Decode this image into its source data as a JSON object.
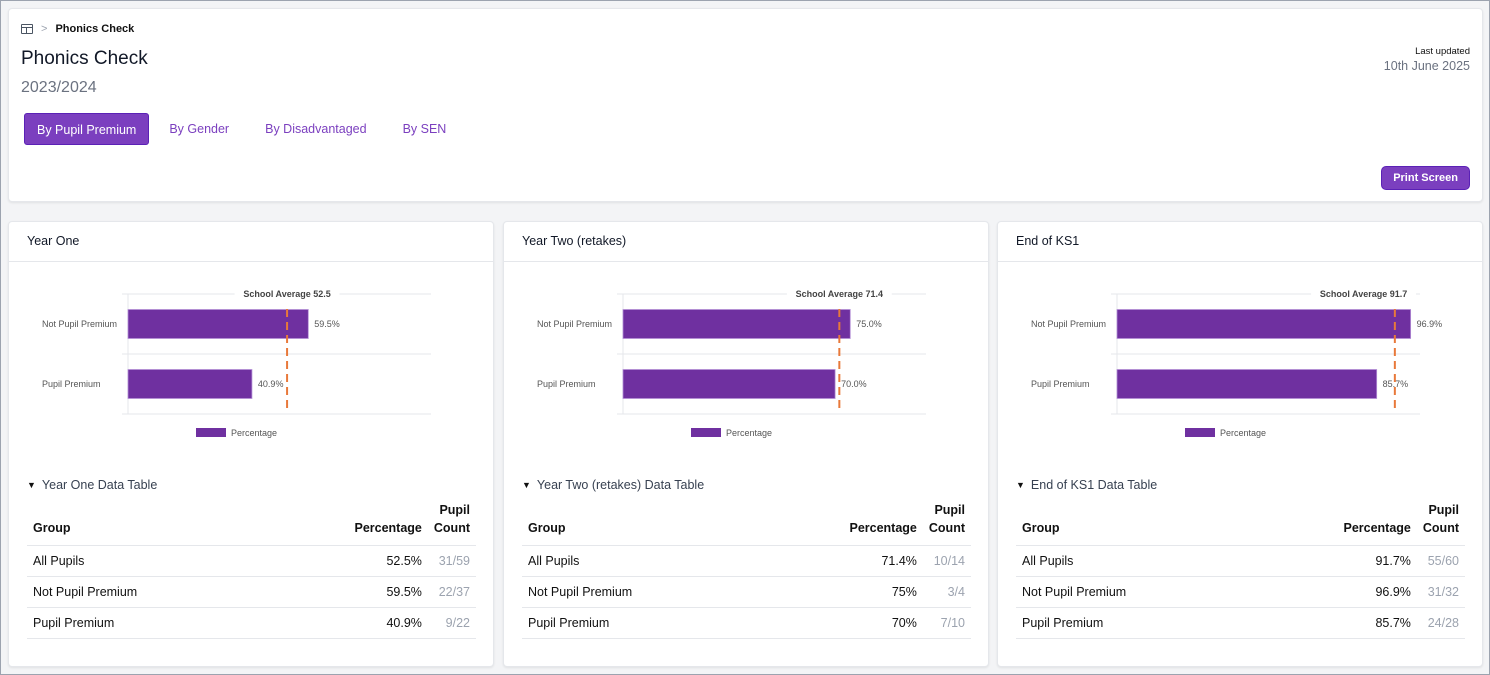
{
  "breadcrumb": {
    "icon": "table-icon",
    "separator": ">",
    "current": "Phonics Check"
  },
  "header": {
    "title": "Phonics Check",
    "subtitle": "2023/2024",
    "last_updated_label": "Last updated",
    "last_updated_date": "10th June 2025"
  },
  "tabs": [
    {
      "label": "By Pupil Premium",
      "active": true
    },
    {
      "label": "By Gender",
      "active": false
    },
    {
      "label": "By Disadvantaged",
      "active": false
    },
    {
      "label": "By SEN",
      "active": false
    }
  ],
  "print_button": "Print Screen",
  "colors": {
    "accent": "#7b3fbf",
    "bar": "#6f30a0",
    "average_line": "#e8793a"
  },
  "table_headers": {
    "group": "Group",
    "percentage": "Percentage",
    "count_line1": "Pupil",
    "count_line2": "Count"
  },
  "panels": [
    {
      "title": "Year One",
      "table_title": "Year One Data Table",
      "rows": [
        {
          "group": "All Pupils",
          "percentage": "52.5%",
          "count": "31/59"
        },
        {
          "group": "Not Pupil Premium",
          "percentage": "59.5%",
          "count": "22/37"
        },
        {
          "group": "Pupil Premium",
          "percentage": "40.9%",
          "count": "9/22"
        }
      ]
    },
    {
      "title": "Year Two (retakes)",
      "table_title": "Year Two (retakes) Data Table",
      "rows": [
        {
          "group": "All Pupils",
          "percentage": "71.4%",
          "count": "10/14"
        },
        {
          "group": "Not Pupil Premium",
          "percentage": "75%",
          "count": "3/4"
        },
        {
          "group": "Pupil Premium",
          "percentage": "70%",
          "count": "7/10"
        }
      ]
    },
    {
      "title": "End of KS1",
      "table_title": "End of KS1 Data Table",
      "rows": [
        {
          "group": "All Pupils",
          "percentage": "91.7%",
          "count": "55/60"
        },
        {
          "group": "Not Pupil Premium",
          "percentage": "96.9%",
          "count": "31/32"
        },
        {
          "group": "Pupil Premium",
          "percentage": "85.7%",
          "count": "24/28"
        }
      ]
    }
  ],
  "chart_data": [
    {
      "type": "bar",
      "orientation": "horizontal",
      "title": "Year One",
      "categories": [
        "Not Pupil Premium",
        "Pupil Premium"
      ],
      "values": [
        59.5,
        40.9
      ],
      "value_labels": [
        "59.5%",
        "40.9%"
      ],
      "reference_line": {
        "label": "School Average 52.5",
        "value": 52.5
      },
      "legend": [
        "Percentage"
      ],
      "legend_position": "bottom",
      "xlim": [
        0,
        100
      ],
      "xlabel": "",
      "ylabel": ""
    },
    {
      "type": "bar",
      "orientation": "horizontal",
      "title": "Year Two (retakes)",
      "categories": [
        "Not Pupil Premium",
        "Pupil Premium"
      ],
      "values": [
        75.0,
        70.0
      ],
      "value_labels": [
        "75.0%",
        "70.0%"
      ],
      "reference_line": {
        "label": "School Average 71.4",
        "value": 71.4
      },
      "legend": [
        "Percentage"
      ],
      "legend_position": "bottom",
      "xlim": [
        0,
        100
      ],
      "xlabel": "",
      "ylabel": ""
    },
    {
      "type": "bar",
      "orientation": "horizontal",
      "title": "End of KS1",
      "categories": [
        "Not Pupil Premium",
        "Pupil Premium"
      ],
      "values": [
        96.9,
        85.7
      ],
      "value_labels": [
        "96.9%",
        "85.7%"
      ],
      "reference_line": {
        "label": "School Average 91.7",
        "value": 91.7
      },
      "legend": [
        "Percentage"
      ],
      "legend_position": "bottom",
      "xlim": [
        0,
        100
      ],
      "xlabel": "",
      "ylabel": ""
    }
  ]
}
